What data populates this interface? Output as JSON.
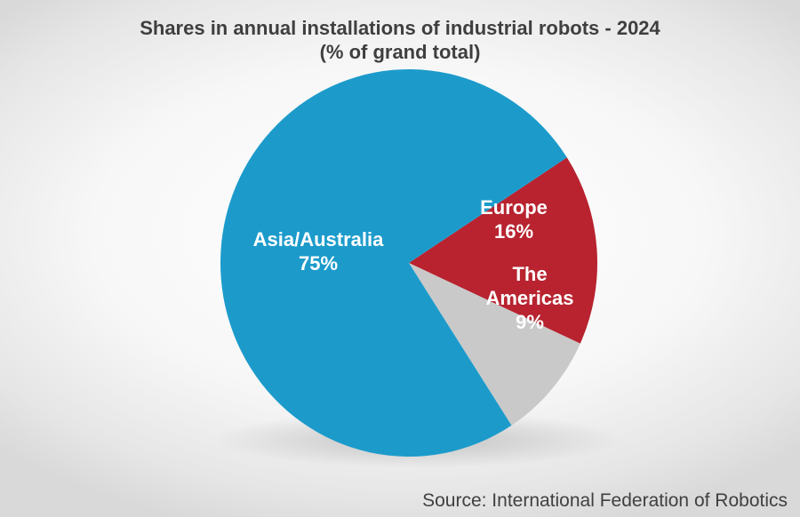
{
  "chart_data": {
    "type": "pie",
    "title": "Shares in annual installations of industrial robots - 2024",
    "subtitle": "(% of grand total)",
    "slices": [
      {
        "name": "Asia/Australia",
        "value": 75,
        "label": "75%",
        "color": "#1c9bcb",
        "label_color": "#ffffff"
      },
      {
        "name": "Europe",
        "value": 16,
        "label": "16%",
        "color": "#b8232f",
        "label_color": "#ffffff"
      },
      {
        "name": "The Americas",
        "value": 9,
        "label": "9%",
        "color": "#c9c9c9",
        "label_color": "#ffffff"
      }
    ],
    "source": "Source: International Federation of Robotics"
  }
}
